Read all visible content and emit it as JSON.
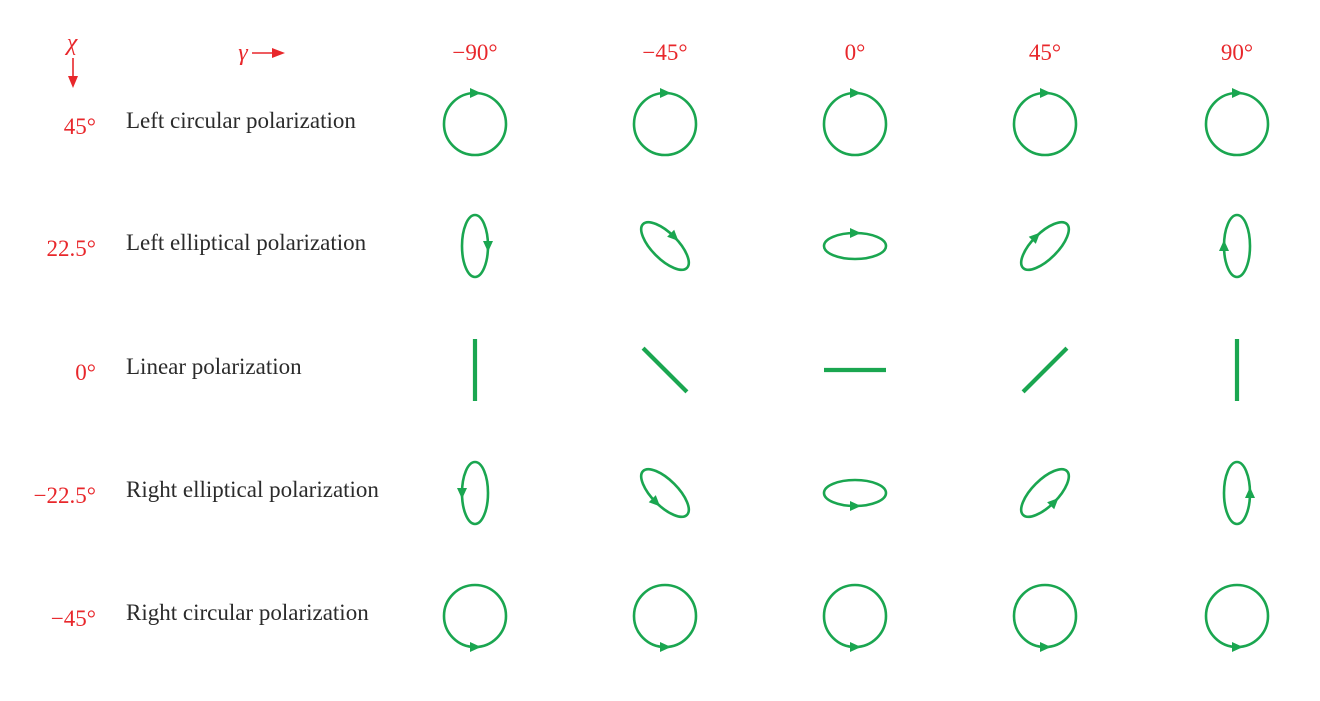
{
  "axes": {
    "chi_symbol": "χ",
    "gamma_symbol": "γ",
    "colors": {
      "axis": "#e8272b",
      "shape": "#1aa650",
      "text": "#2b2b2b"
    }
  },
  "columns": [
    {
      "gamma_label": "−90°",
      "gamma_deg": -90
    },
    {
      "gamma_label": "−45°",
      "gamma_deg": -45
    },
    {
      "gamma_label": "0°",
      "gamma_deg": 0
    },
    {
      "gamma_label": "45°",
      "gamma_deg": 45
    },
    {
      "gamma_label": "90°",
      "gamma_deg": 90
    }
  ],
  "rows": [
    {
      "chi_label": "45°",
      "chi_deg": 45,
      "name": "Left circular polarization",
      "shape": "circle",
      "handedness": "left"
    },
    {
      "chi_label": "22.5°",
      "chi_deg": 22.5,
      "name": "Left elliptical polarization",
      "shape": "ellipse",
      "handedness": "left"
    },
    {
      "chi_label": "0°",
      "chi_deg": 0,
      "name": "Linear polarization",
      "shape": "line",
      "handedness": "none"
    },
    {
      "chi_label": "−22.5°",
      "chi_deg": -22.5,
      "name": "Right elliptical polarization",
      "shape": "ellipse",
      "handedness": "right"
    },
    {
      "chi_label": "−45°",
      "chi_deg": -45,
      "name": "Right circular polarization",
      "shape": "circle",
      "handedness": "right"
    }
  ]
}
